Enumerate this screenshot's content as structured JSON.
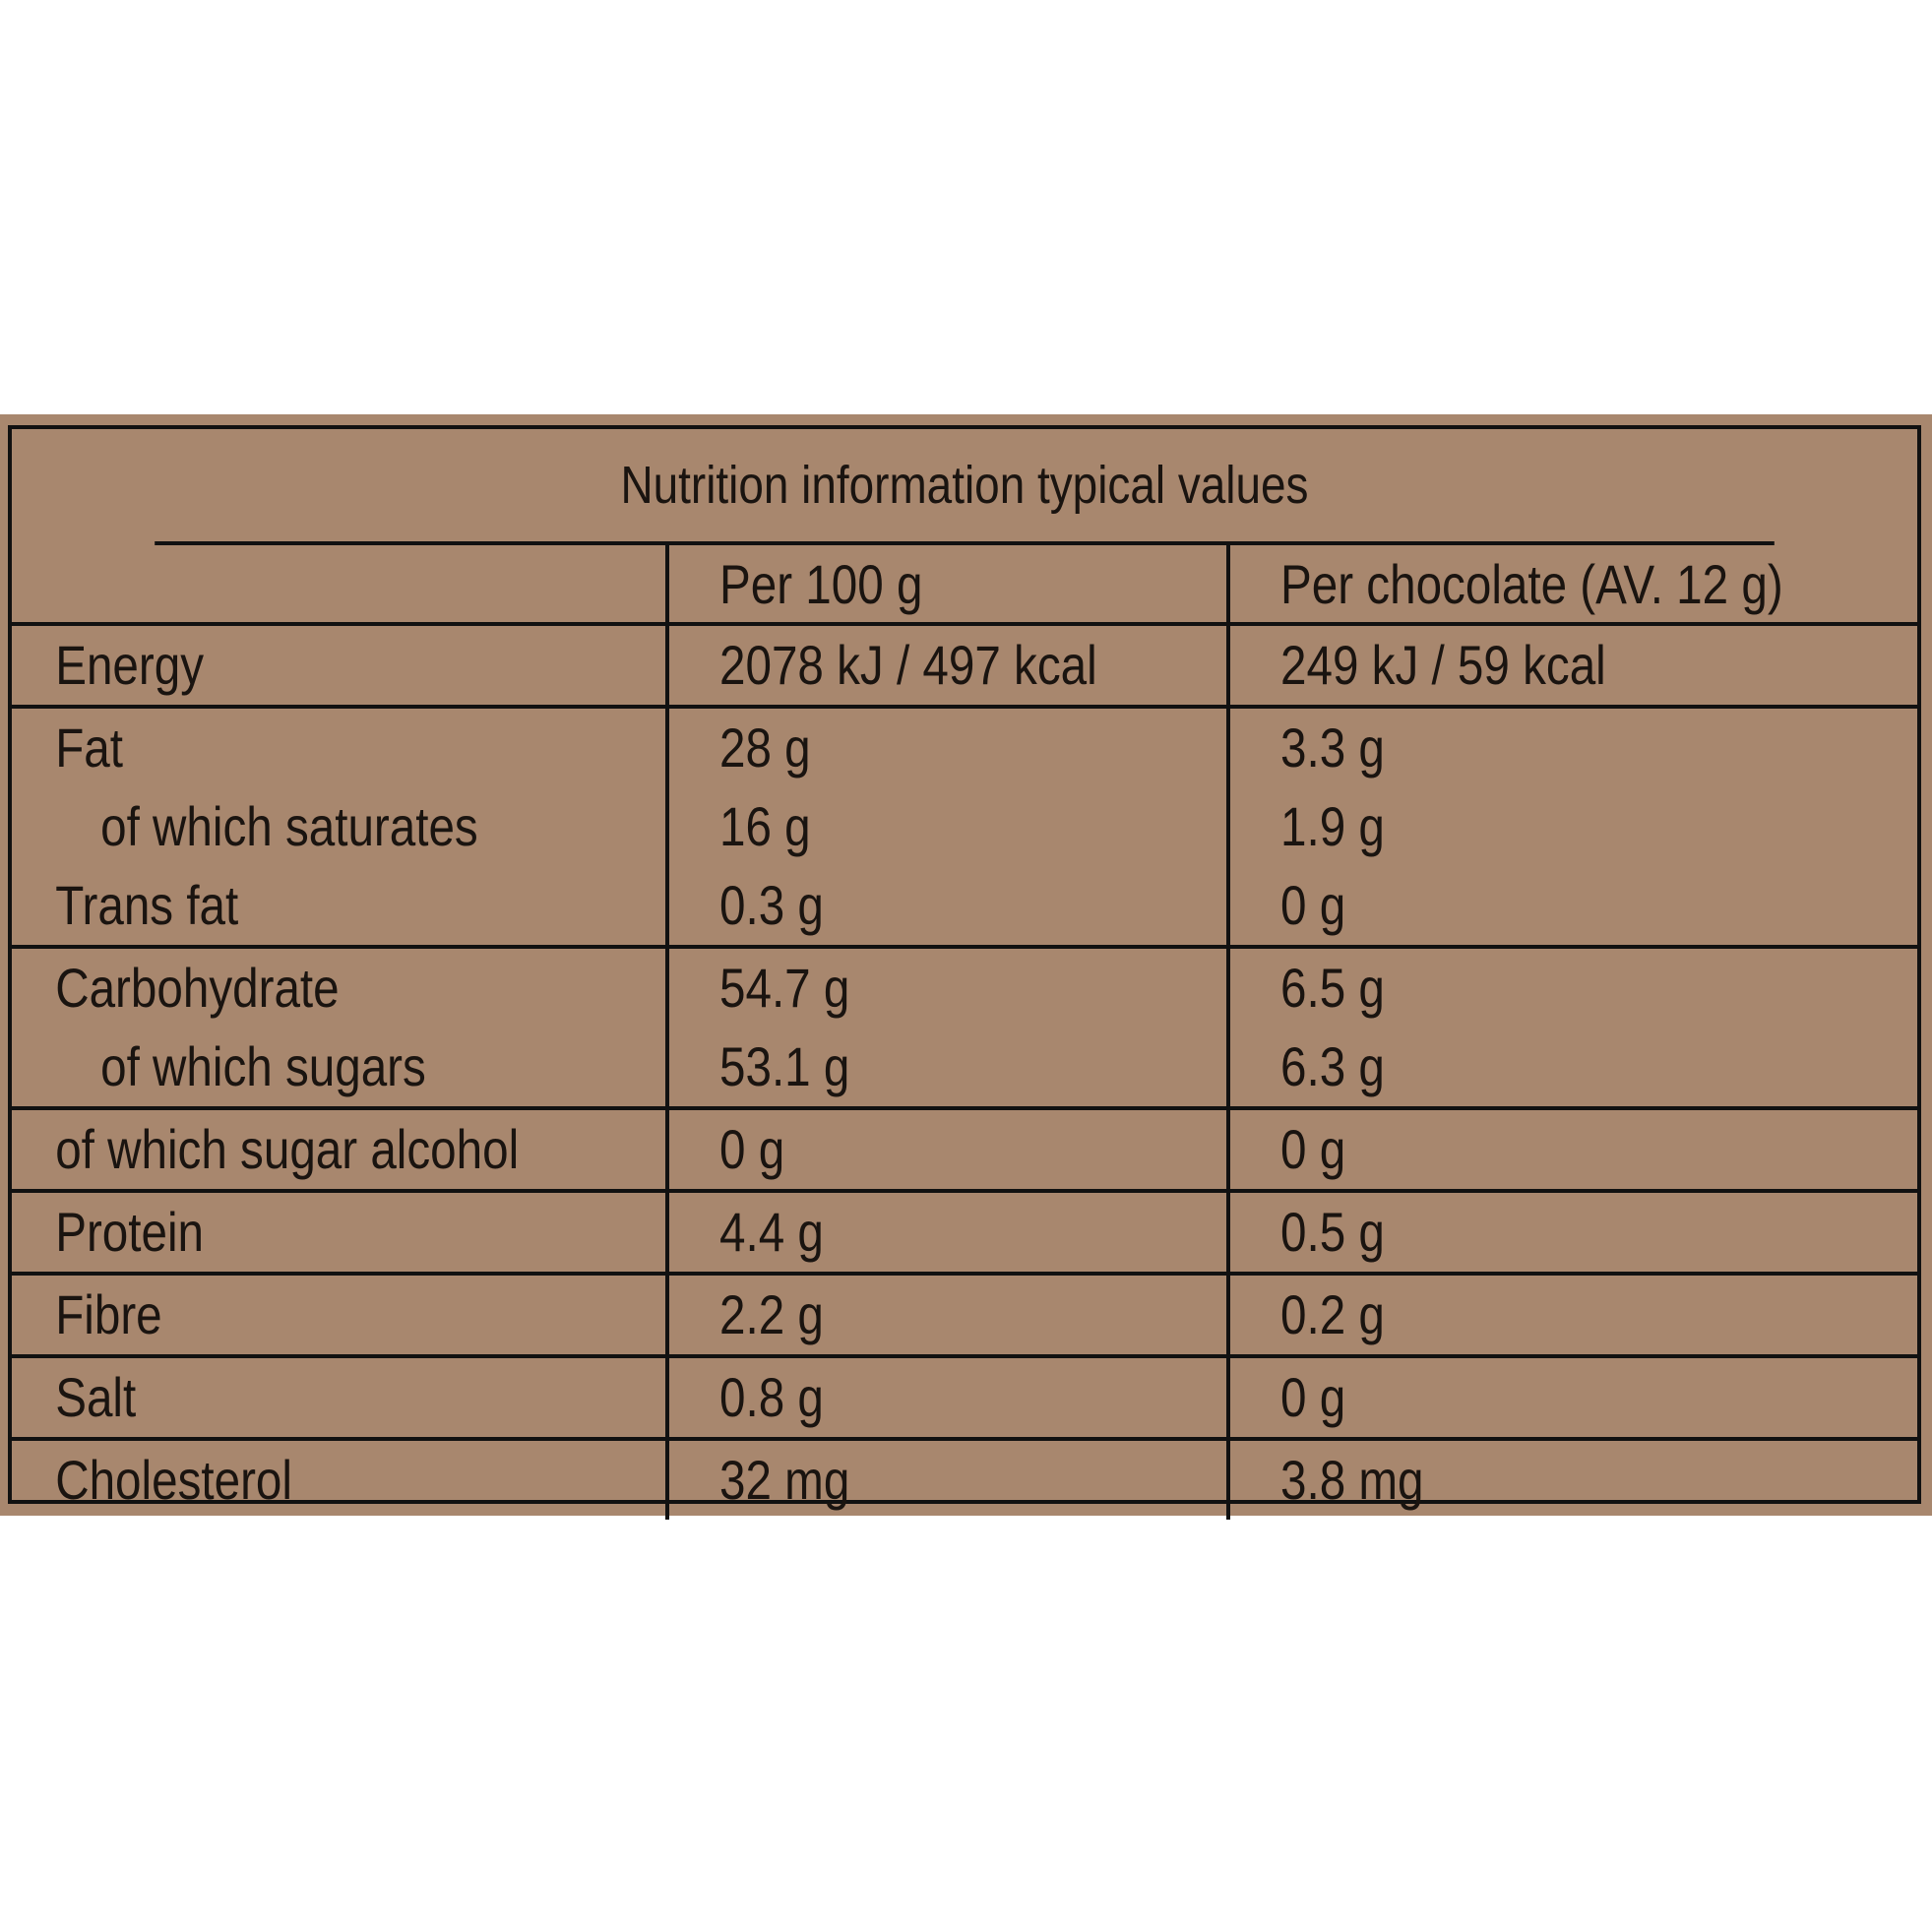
{
  "header": {
    "title": "Nutrition information typical values",
    "columns": [
      "Per 100 g",
      "Per chocolate (AV. 12 g)"
    ]
  },
  "table": {
    "groups": [
      {
        "lines": [
          {
            "label": "Energy",
            "cells": [
              "2078 kJ / 497 kcal",
              "249 kJ / 59 kcal"
            ]
          }
        ]
      },
      {
        "lines": [
          {
            "label": "Fat",
            "cells": [
              "28 g",
              "3.3 g"
            ]
          },
          {
            "label": "of which saturates",
            "sub": true,
            "cells": [
              "16 g",
              "1.9 g"
            ]
          },
          {
            "label": "Trans fat",
            "cells": [
              "0.3 g",
              "0 g"
            ]
          }
        ]
      },
      {
        "lines": [
          {
            "label": "Carbohydrate",
            "cells": [
              "54.7 g",
              "6.5 g"
            ]
          },
          {
            "label": "of which sugars",
            "sub": true,
            "cells": [
              "53.1 g",
              "6.3 g"
            ]
          }
        ]
      },
      {
        "lines": [
          {
            "label": "of which sugar alcohol",
            "cells": [
              "0 g",
              "0 g"
            ]
          }
        ]
      },
      {
        "lines": [
          {
            "label": "Protein",
            "cells": [
              "4.4 g",
              "0.5 g"
            ]
          }
        ]
      },
      {
        "lines": [
          {
            "label": "Fibre",
            "cells": [
              "2.2 g",
              "0.2 g"
            ]
          }
        ]
      },
      {
        "lines": [
          {
            "label": "Salt",
            "cells": [
              "0.8 g",
              "0 g"
            ]
          }
        ]
      },
      {
        "lines": [
          {
            "label": "Cholesterol",
            "cells": [
              "32 mg",
              "3.8 mg"
            ]
          }
        ]
      }
    ]
  }
}
